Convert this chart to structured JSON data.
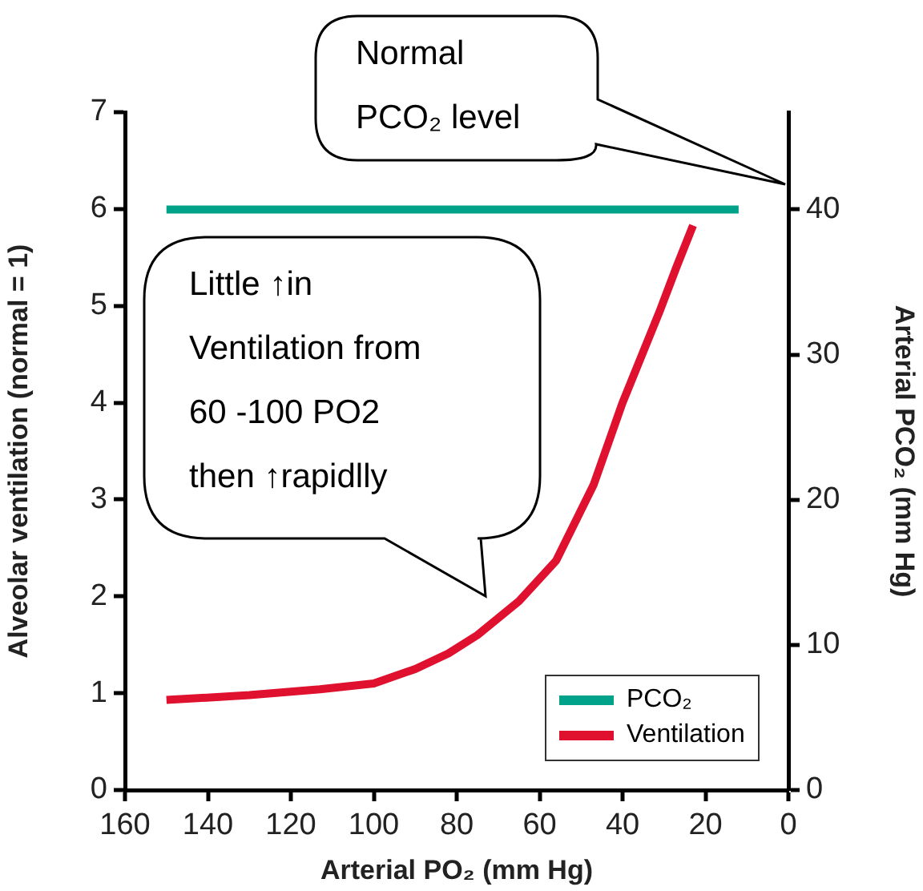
{
  "chart_data": {
    "type": "line",
    "xlabel": "Arterial PO₂ (mm Hg)",
    "ylabel": "Alveolar ventilation (normal = 1)",
    "y2label": "Arterial PCO₂ (mm Hg)",
    "xlim": [
      160,
      0
    ],
    "xticks": [
      160,
      140,
      120,
      100,
      80,
      60,
      40,
      20,
      0
    ],
    "ylim": [
      0,
      7
    ],
    "yticks": [
      0,
      1,
      2,
      3,
      4,
      5,
      6,
      7
    ],
    "y2lim": [
      0,
      46.7
    ],
    "y2ticks": [
      0,
      10,
      20,
      30,
      40
    ],
    "series": [
      {
        "name": "PCO₂",
        "color": "#00a38a",
        "axis": "y2",
        "x": [
          150,
          12
        ],
        "values": [
          40,
          40
        ]
      },
      {
        "name": "Ventilation",
        "color": "#e0102f",
        "x": [
          150,
          130,
          113,
          100,
          90,
          82,
          75,
          65,
          56,
          47,
          40,
          31,
          27,
          23
        ],
        "values": [
          0.93,
          0.98,
          1.04,
          1.1,
          1.25,
          1.41,
          1.6,
          1.95,
          2.37,
          3.15,
          4.0,
          4.95,
          5.4,
          5.83
        ]
      }
    ],
    "annotations": [
      "Normal PCO₂ level",
      "Little ↑in Ventilation from 60 -100 PO2 then ↑rapidlly"
    ],
    "legend": "bottom right",
    "grid": false,
    "marker": "none",
    "line_style": "solid"
  }
}
